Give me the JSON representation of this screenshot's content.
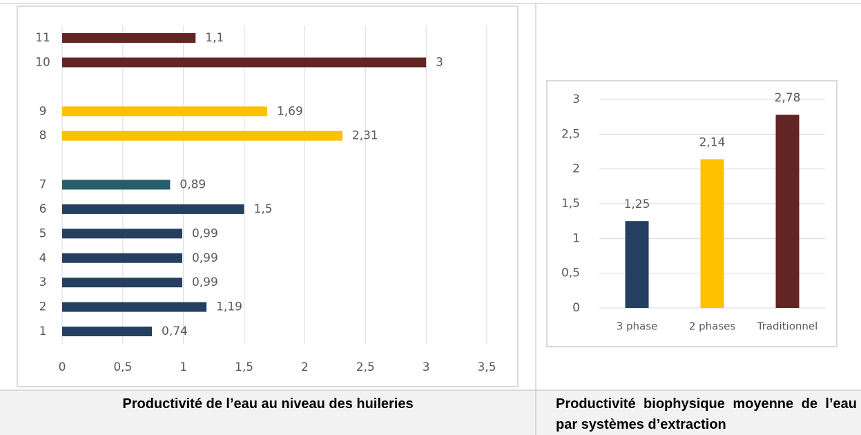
{
  "chart_data": [
    {
      "type": "hbar",
      "categories": [
        "1",
        "2",
        "3",
        "4",
        "5",
        "6",
        "7",
        null,
        "8",
        "9",
        null,
        "10",
        "11"
      ],
      "values": [
        0.74,
        1.19,
        0.99,
        0.99,
        0.99,
        1.5,
        0.89,
        null,
        2.31,
        1.69,
        null,
        3,
        1.1
      ],
      "value_labels": [
        "0,74",
        "1,19",
        "0,99",
        "0,99",
        "0,99",
        "1,5",
        "0,89",
        null,
        "2,31",
        "1,69",
        null,
        "3",
        "1,1"
      ],
      "colors": [
        "#243f60",
        "#243f60",
        "#243f60",
        "#243f60",
        "#243f60",
        "#243f60",
        "#255e69",
        null,
        "#ffc000",
        "#ffc000",
        null,
        "#632523",
        "#632523"
      ],
      "xlim": [
        0,
        3.5
      ],
      "xticks": [
        0,
        {
          "value": 0.5,
          "label": "0,5"
        },
        1,
        {
          "value": 1.5,
          "label": "1,5"
        },
        2,
        {
          "value": 2.5,
          "label": "2,5"
        },
        3,
        {
          "value": 3.5,
          "label": "3,5"
        }
      ],
      "grid": true
    },
    {
      "type": "bar",
      "categories": [
        "3 phase",
        "2 phases",
        "Traditionnel"
      ],
      "values": [
        1.25,
        2.14,
        2.78
      ],
      "value_labels": [
        "1,25",
        "2,14",
        "2,78"
      ],
      "colors": [
        "#243f60",
        "#ffc000",
        "#632523"
      ],
      "ylim": [
        0,
        3
      ],
      "yticks": [
        0,
        {
          "value": 0.5,
          "label": "0,5"
        },
        1,
        {
          "value": 1.5,
          "label": "1,5"
        },
        2,
        {
          "value": 2.5,
          "label": "2,5"
        },
        3
      ],
      "grid": true
    }
  ],
  "captions": [
    "Productivité de l’eau au niveau des huileries",
    "Productivité biophysique moyenne de l’eau par systèmes d’extraction"
  ]
}
